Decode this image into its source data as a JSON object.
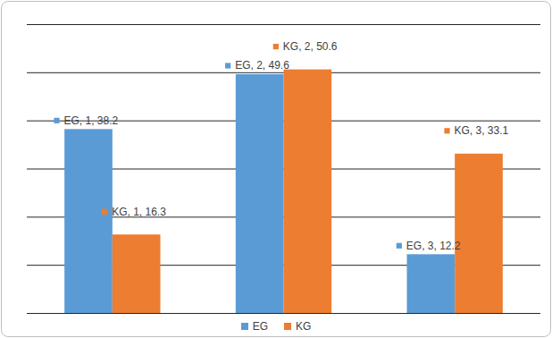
{
  "chart_data": {
    "type": "bar",
    "categories": [
      "1",
      "2",
      "3"
    ],
    "series": [
      {
        "name": "EG",
        "color": "#5b9bd5",
        "values": [
          38.2,
          49.6,
          12.2
        ],
        "value_labels": [
          "EG, 1, 38.2",
          "EG, 2, 49.6",
          "EG, 3, 12.2"
        ]
      },
      {
        "name": "KG",
        "color": "#ed7d31",
        "values": [
          16.3,
          50.6,
          33.1
        ],
        "value_labels": [
          "KG, 1, 16.3",
          "KG, 2, 50.6",
          "KG, 3, 33.1"
        ]
      }
    ],
    "ylim": [
      0,
      60
    ],
    "yticks": [
      0,
      10,
      20,
      30,
      40,
      50,
      60
    ],
    "grid": true,
    "data_labels": true,
    "tick_labels": false,
    "legend": "bottom"
  }
}
